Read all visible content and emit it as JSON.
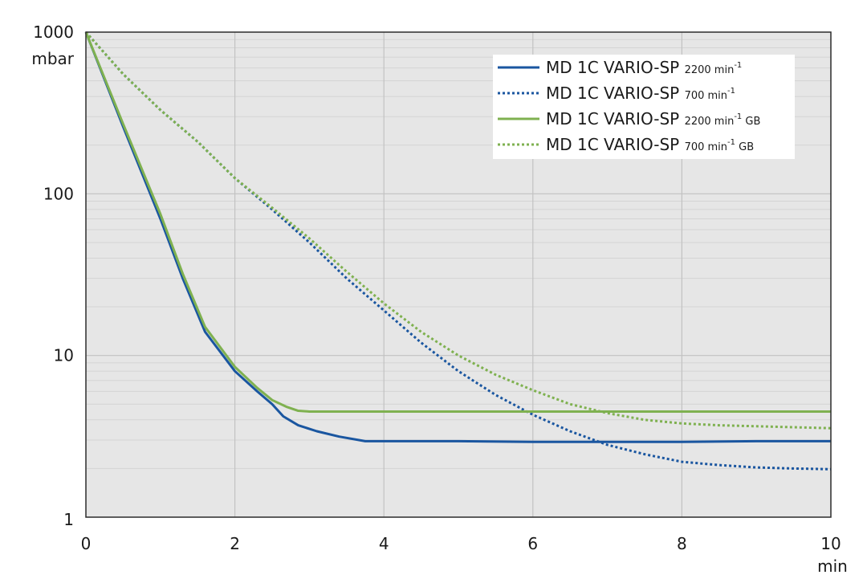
{
  "chart_data": {
    "type": "line",
    "title": "",
    "xlabel": "min",
    "ylabel": "mbar",
    "y_scale": "log",
    "xlim": [
      0,
      10
    ],
    "ylim": [
      1,
      1000
    ],
    "x_ticks": [
      "0",
      "2",
      "4",
      "6",
      "8",
      "10"
    ],
    "y_ticks": [
      "1000",
      "100",
      "10",
      "1"
    ],
    "grid": true,
    "legend_position": "top-right",
    "colors": {
      "blue": "#1a56a0",
      "green": "#7fb150",
      "plot_background": "#e6e6e6",
      "grid_major": "#c2c2c2",
      "grid_minor": "#d4d4d4"
    },
    "series": [
      {
        "name": "MD 1C VARIO-SP",
        "name_sub": "2200 min",
        "name_sup": "-1",
        "name_suffix": "",
        "color": "#1a56a0",
        "style": "solid",
        "x": [
          0,
          0.5,
          1,
          1.3,
          1.6,
          2,
          2.3,
          2.5,
          2.65,
          2.85,
          3.1,
          3.4,
          3.75,
          4,
          5,
          6,
          7,
          8,
          9,
          10
        ],
        "y": [
          1000,
          260,
          70,
          30,
          14,
          8,
          6,
          5,
          4.2,
          3.7,
          3.4,
          3.15,
          2.95,
          2.95,
          2.95,
          2.92,
          2.92,
          2.92,
          2.95,
          2.95
        ]
      },
      {
        "name": "MD 1C VARIO-SP",
        "name_sub": "700 min",
        "name_sup": "-1",
        "name_suffix": "",
        "color": "#1a56a0",
        "style": "dotted",
        "x": [
          0,
          0.5,
          1,
          1.5,
          2,
          2.5,
          3,
          3.5,
          4,
          4.5,
          5,
          5.5,
          6,
          6.5,
          7,
          7.5,
          8,
          8.5,
          9,
          9.5,
          10
        ],
        "y": [
          1000,
          550,
          330,
          210,
          125,
          80,
          50,
          30,
          19,
          12,
          8,
          5.7,
          4.3,
          3.4,
          2.8,
          2.45,
          2.2,
          2.1,
          2.03,
          2.0,
          1.98
        ]
      },
      {
        "name": "MD 1C VARIO-SP",
        "name_sub": "2200 min",
        "name_sup": "-1",
        "name_suffix": "GB",
        "color": "#7fb150",
        "style": "solid",
        "x": [
          0,
          0.5,
          1,
          1.3,
          1.6,
          2,
          2.3,
          2.5,
          2.7,
          2.85,
          3,
          4,
          5,
          6,
          7,
          8,
          9,
          10
        ],
        "y": [
          1000,
          270,
          75,
          32,
          15,
          8.5,
          6.3,
          5.3,
          4.8,
          4.55,
          4.5,
          4.5,
          4.5,
          4.5,
          4.5,
          4.5,
          4.5,
          4.5
        ]
      },
      {
        "name": "MD 1C VARIO-SP",
        "name_sub": "700 min",
        "name_sup": "-1",
        "name_suffix": "GB",
        "color": "#7fb150",
        "style": "dotted",
        "x": [
          0,
          0.5,
          1,
          1.5,
          2,
          2.5,
          3,
          3.5,
          4,
          4.5,
          5,
          5.5,
          6,
          6.5,
          7,
          7.5,
          8,
          8.5,
          9,
          9.5,
          10
        ],
        "y": [
          1000,
          550,
          330,
          210,
          125,
          82,
          53,
          33,
          21,
          14,
          10,
          7.6,
          6.1,
          5.0,
          4.4,
          4.0,
          3.8,
          3.7,
          3.65,
          3.6,
          3.55
        ]
      }
    ]
  }
}
